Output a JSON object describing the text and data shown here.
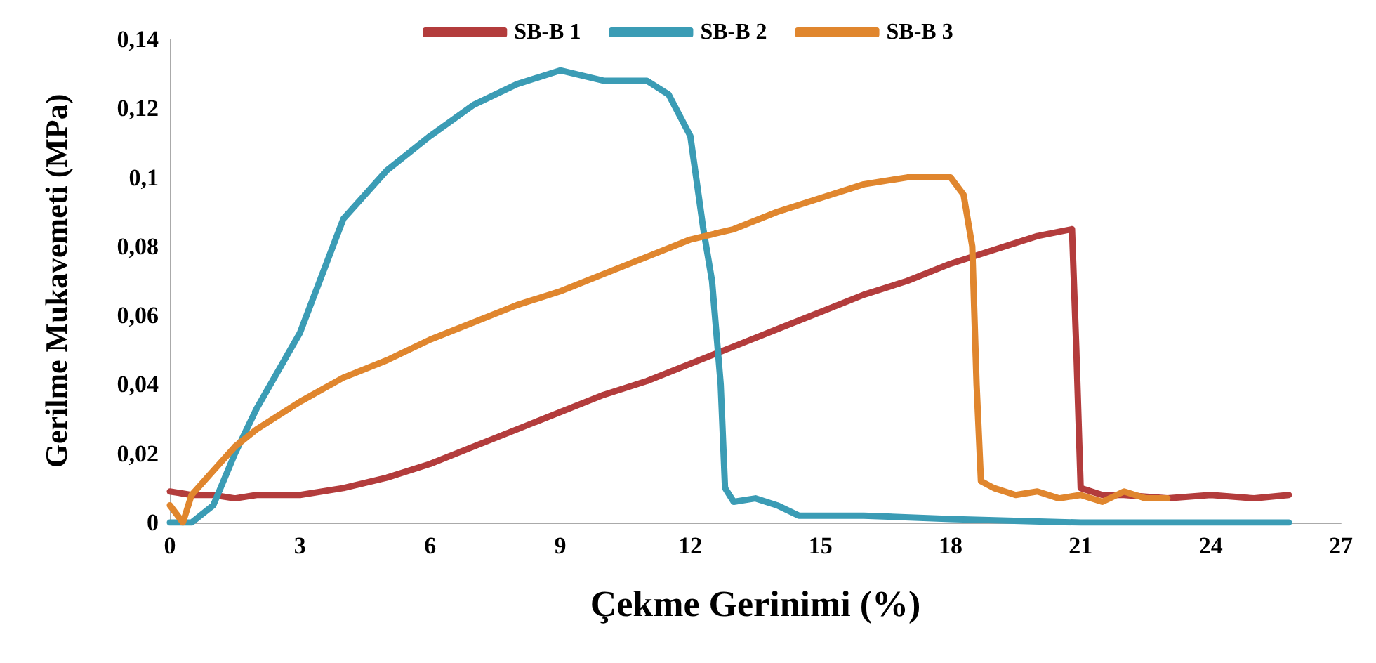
{
  "chart_data": {
    "type": "line",
    "xlabel": "Çekme Gerinimi (%)",
    "ylabel": "Gerilme Mukavemeti (MPa)",
    "xlim": [
      0,
      27
    ],
    "xticks": [
      0,
      3,
      6,
      9,
      12,
      15,
      18,
      21,
      24,
      27
    ],
    "ylim": [
      0,
      0.14
    ],
    "yticks": [
      0,
      {
        "value": 0.02,
        "label": "0,02"
      },
      {
        "value": 0.04,
        "label": "0,04"
      },
      {
        "value": 0.06,
        "label": "0,06"
      },
      {
        "value": 0.08,
        "label": "0,08"
      },
      {
        "value": 0.1,
        "label": "0,1"
      },
      {
        "value": 0.12,
        "label": "0,12"
      },
      {
        "value": 0.14,
        "label": "0,14"
      }
    ],
    "grid": false,
    "legend": "top",
    "marker": "none",
    "line_style": "solid",
    "series": [
      {
        "name": "SB-B 1",
        "color": "#b33c3c",
        "x": [
          0,
          0.5,
          1,
          1.5,
          2,
          3,
          4,
          5,
          6,
          7,
          8,
          9,
          10,
          11,
          12,
          13,
          14,
          15,
          16,
          17,
          18,
          19,
          20,
          20.8,
          20.9,
          21,
          21.5,
          22,
          23,
          24,
          25,
          25.8
        ],
        "values": [
          0.009,
          0.008,
          0.008,
          0.007,
          0.008,
          0.008,
          0.01,
          0.013,
          0.017,
          0.022,
          0.027,
          0.032,
          0.037,
          0.041,
          0.046,
          0.051,
          0.056,
          0.061,
          0.066,
          0.07,
          0.075,
          0.079,
          0.083,
          0.085,
          0.05,
          0.01,
          0.008,
          0.008,
          0.007,
          0.008,
          0.007,
          0.008
        ]
      },
      {
        "name": "SB-B 2",
        "color": "#3b9cb5",
        "x": [
          0,
          0.5,
          1,
          1.5,
          2,
          3,
          4,
          5,
          6,
          7,
          8,
          9,
          10,
          11,
          11.5,
          12,
          12.3,
          12.5,
          12.7,
          12.8,
          13,
          13.5,
          14,
          14.5,
          16,
          18,
          21,
          25.8
        ],
        "values": [
          0,
          0,
          0.005,
          0.02,
          0.033,
          0.055,
          0.088,
          0.102,
          0.112,
          0.121,
          0.127,
          0.131,
          0.128,
          0.128,
          0.124,
          0.112,
          0.085,
          0.07,
          0.04,
          0.01,
          0.006,
          0.007,
          0.005,
          0.002,
          0.002,
          0.001,
          0,
          0
        ]
      },
      {
        "name": "SB-B 3",
        "color": "#e0862e",
        "x": [
          0,
          0.3,
          0.5,
          1,
          1.5,
          2,
          3,
          4,
          5,
          6,
          7,
          8,
          9,
          10,
          11,
          12,
          13,
          14,
          15,
          16,
          17,
          18,
          18.3,
          18.5,
          18.6,
          18.7,
          19,
          19.5,
          20,
          20.5,
          21,
          21.5,
          22,
          22.5,
          23
        ],
        "values": [
          0.005,
          0,
          0.008,
          0.015,
          0.022,
          0.027,
          0.035,
          0.042,
          0.047,
          0.053,
          0.058,
          0.063,
          0.067,
          0.072,
          0.077,
          0.082,
          0.085,
          0.09,
          0.094,
          0.098,
          0.1,
          0.1,
          0.095,
          0.08,
          0.04,
          0.012,
          0.01,
          0.008,
          0.009,
          0.007,
          0.008,
          0.006,
          0.009,
          0.007,
          0.007
        ]
      }
    ]
  }
}
